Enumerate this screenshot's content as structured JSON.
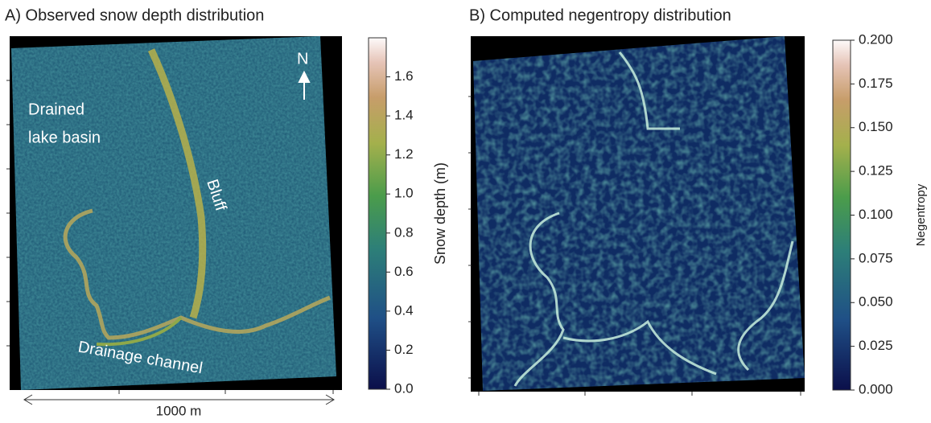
{
  "chart_data": [
    {
      "type": "map",
      "title": "A) Observed  snow depth distribution",
      "annotations": [
        "Drained",
        "lake basin",
        "Bluff",
        "N",
        "Drainage channel",
        "1000 m"
      ],
      "colorbar": {
        "label": "Snow depth (m)",
        "lim": [
          0,
          1.8
        ],
        "ticks": [
          {
            "value": 0,
            "label": "0.0"
          },
          {
            "value": 0.2,
            "label": "0.2"
          },
          {
            "value": 0.4,
            "label": "0.4"
          },
          {
            "value": 0.6,
            "label": "0.6"
          },
          {
            "value": 0.8,
            "label": "0.8"
          },
          {
            "value": 1.0,
            "label": "1.0"
          },
          {
            "value": 1.2,
            "label": "1.2"
          },
          {
            "value": 1.4,
            "label": "1.4"
          },
          {
            "value": 1.6,
            "label": "1.6"
          }
        ]
      }
    },
    {
      "type": "map",
      "title": "B) Computed negentropy distribution",
      "annotations": [],
      "colorbar": {
        "label": "Negentropy",
        "lim": [
          0,
          0.2
        ],
        "ticks": [
          {
            "value": 0,
            "label": "0.000"
          },
          {
            "value": 0.025,
            "label": "0.025"
          },
          {
            "value": 0.05,
            "label": "0.050"
          },
          {
            "value": 0.075,
            "label": "0.075"
          },
          {
            "value": 0.1,
            "label": "0.100"
          },
          {
            "value": 0.125,
            "label": "0.125"
          },
          {
            "value": 0.15,
            "label": "0.150"
          },
          {
            "value": 0.175,
            "label": "0.175"
          },
          {
            "value": 0.2,
            "label": "0.200"
          }
        ]
      }
    }
  ]
}
